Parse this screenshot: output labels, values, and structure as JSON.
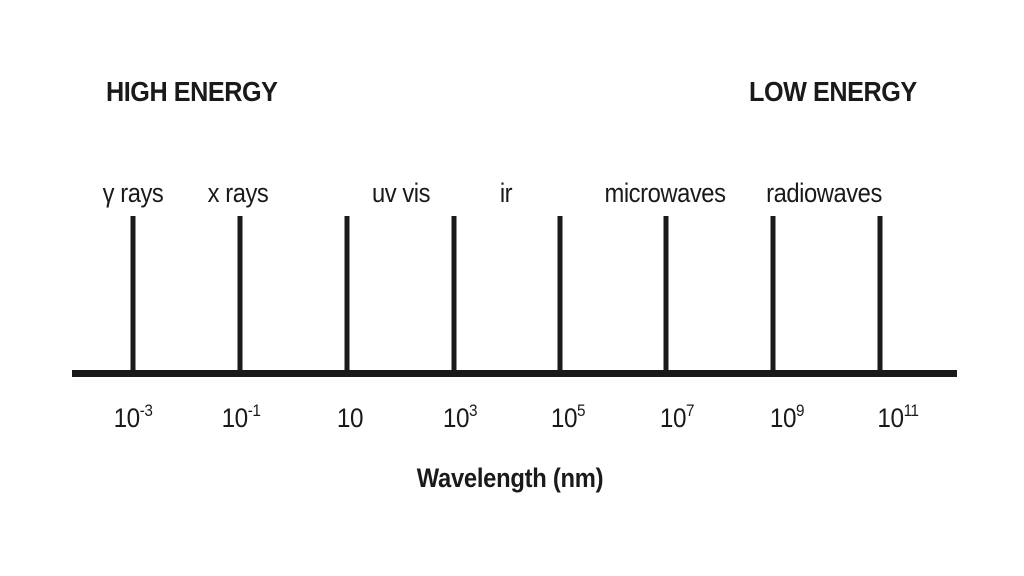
{
  "energy": {
    "high": "HIGH ENERGY",
    "low": "LOW ENERGY"
  },
  "bands": [
    {
      "label": "γ rays"
    },
    {
      "label": "x rays"
    },
    {
      "label": "uv vis"
    },
    {
      "label": "ir"
    },
    {
      "label": "microwaves"
    },
    {
      "label": "radiowaves"
    }
  ],
  "scale": [
    {
      "base": "10",
      "exp": "-3"
    },
    {
      "base": "10",
      "exp": "-1"
    },
    {
      "base": "10",
      "exp": ""
    },
    {
      "base": "10",
      "exp": "3"
    },
    {
      "base": "10",
      "exp": "5"
    },
    {
      "base": "10",
      "exp": "7"
    },
    {
      "base": "10",
      "exp": "9"
    },
    {
      "base": "10",
      "exp": "11"
    }
  ],
  "axis_title": "Wavelength (nm)"
}
